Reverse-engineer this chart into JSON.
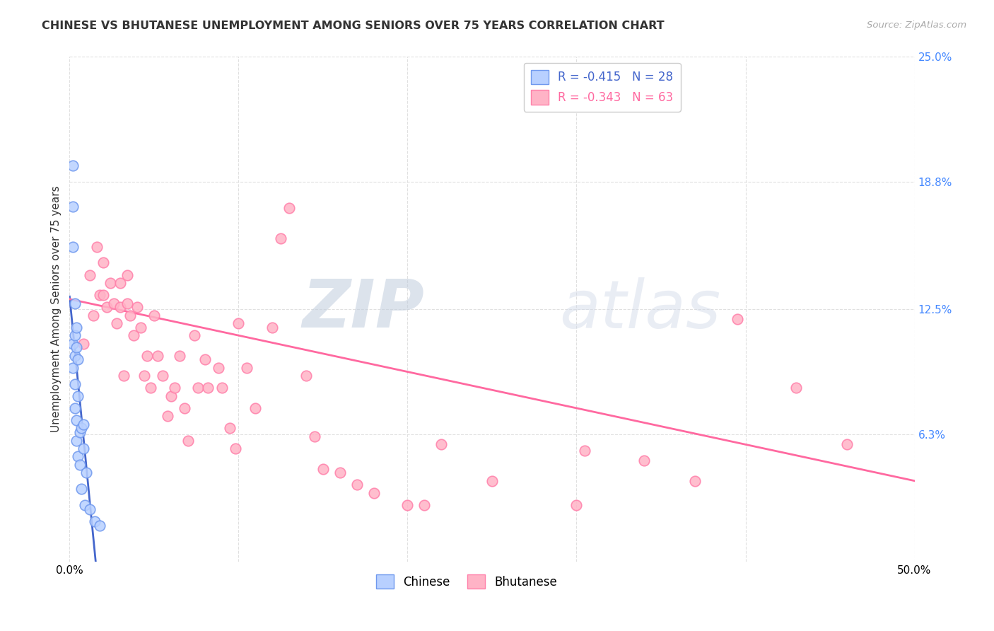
{
  "title": "CHINESE VS BHUTANESE UNEMPLOYMENT AMONG SENIORS OVER 75 YEARS CORRELATION CHART",
  "source": "Source: ZipAtlas.com",
  "ylabel": "Unemployment Among Seniors over 75 years",
  "xlim": [
    0,
    0.5
  ],
  "ylim": [
    0,
    0.25
  ],
  "ytick_right_labels": [
    "25.0%",
    "18.8%",
    "12.5%",
    "6.3%"
  ],
  "ytick_right_values": [
    0.25,
    0.188,
    0.125,
    0.063
  ],
  "xtick_values": [
    0.0,
    0.1,
    0.2,
    0.3,
    0.4,
    0.5
  ],
  "xtick_labels": [
    "0.0%",
    "",
    "",
    "",
    "",
    "50.0%"
  ],
  "chinese_color": "#b8d0ff",
  "chinese_edge": "#7099ee",
  "bhutanese_color": "#ffb3c6",
  "bhutanese_edge": "#ff80aa",
  "trend_chinese_color": "#4466cc",
  "trend_bhutanese_color": "#ff69a0",
  "chinese_R": -0.415,
  "chinese_N": 28,
  "bhutanese_R": -0.343,
  "bhutanese_N": 63,
  "watermark": "ZIPatlas",
  "chinese_x": [
    0.002,
    0.002,
    0.002,
    0.002,
    0.002,
    0.003,
    0.003,
    0.003,
    0.003,
    0.003,
    0.004,
    0.004,
    0.004,
    0.004,
    0.005,
    0.005,
    0.005,
    0.006,
    0.006,
    0.007,
    0.007,
    0.008,
    0.008,
    0.009,
    0.01,
    0.012,
    0.015,
    0.018
  ],
  "chinese_y": [
    0.196,
    0.176,
    0.156,
    0.108,
    0.096,
    0.128,
    0.112,
    0.102,
    0.088,
    0.076,
    0.116,
    0.106,
    0.07,
    0.06,
    0.1,
    0.082,
    0.052,
    0.064,
    0.048,
    0.066,
    0.036,
    0.068,
    0.056,
    0.028,
    0.044,
    0.026,
    0.02,
    0.018
  ],
  "bhutanese_x": [
    0.008,
    0.012,
    0.014,
    0.016,
    0.018,
    0.02,
    0.02,
    0.022,
    0.024,
    0.026,
    0.028,
    0.03,
    0.03,
    0.032,
    0.034,
    0.034,
    0.036,
    0.038,
    0.04,
    0.042,
    0.044,
    0.046,
    0.048,
    0.05,
    0.052,
    0.055,
    0.058,
    0.06,
    0.062,
    0.065,
    0.068,
    0.07,
    0.074,
    0.076,
    0.08,
    0.082,
    0.088,
    0.09,
    0.095,
    0.098,
    0.1,
    0.105,
    0.11,
    0.12,
    0.125,
    0.13,
    0.14,
    0.145,
    0.15,
    0.16,
    0.17,
    0.18,
    0.2,
    0.21,
    0.22,
    0.25,
    0.3,
    0.305,
    0.34,
    0.37,
    0.395,
    0.43,
    0.46
  ],
  "bhutanese_y": [
    0.108,
    0.142,
    0.122,
    0.156,
    0.132,
    0.148,
    0.132,
    0.126,
    0.138,
    0.128,
    0.118,
    0.138,
    0.126,
    0.092,
    0.142,
    0.128,
    0.122,
    0.112,
    0.126,
    0.116,
    0.092,
    0.102,
    0.086,
    0.122,
    0.102,
    0.092,
    0.072,
    0.082,
    0.086,
    0.102,
    0.076,
    0.06,
    0.112,
    0.086,
    0.1,
    0.086,
    0.096,
    0.086,
    0.066,
    0.056,
    0.118,
    0.096,
    0.076,
    0.116,
    0.16,
    0.175,
    0.092,
    0.062,
    0.046,
    0.044,
    0.038,
    0.034,
    0.028,
    0.028,
    0.058,
    0.04,
    0.028,
    0.055,
    0.05,
    0.04,
    0.12,
    0.086,
    0.058
  ],
  "background_color": "#ffffff",
  "grid_color": "#e0e0e0",
  "title_fontsize": 11.5,
  "axis_fontsize": 11,
  "legend_fontsize": 12,
  "marker_size": 110
}
